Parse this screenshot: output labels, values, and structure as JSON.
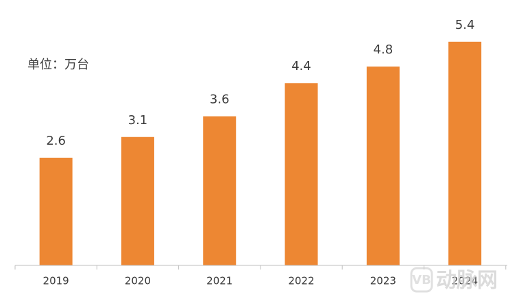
{
  "chart_data": {
    "type": "bar",
    "annotation": "单位：万台",
    "categories": [
      "2019",
      "2020",
      "2021",
      "2022",
      "2023",
      "2024"
    ],
    "values": [
      2.6,
      3.1,
      3.6,
      4.4,
      4.8,
      5.4
    ],
    "color": "#ed8733"
  },
  "watermark": "动脉网"
}
